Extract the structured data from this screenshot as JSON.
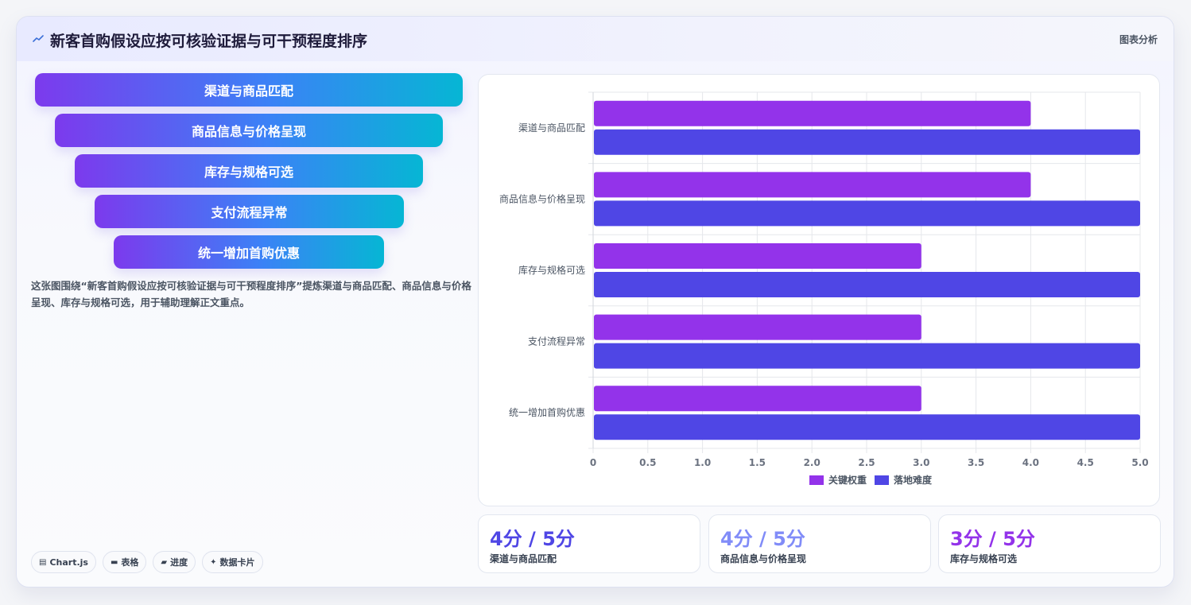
{
  "header": {
    "title": "新客首购假设应按可核验证据与可干预程度排序",
    "tag": "图表分析"
  },
  "funnel": {
    "items": [
      "渠道与商品匹配",
      "商品信息与价格呈现",
      "库存与规格可选",
      "支付流程异常",
      "统一增加首购优惠"
    ]
  },
  "description": "这张图围绕“新客首购假设应按可核验证据与可干预程度排序”提炼渠道与商品匹配、商品信息与价格呈现、库存与规格可选，用于辅助理解正文重点。",
  "chips": [
    {
      "icon": "chart-icon",
      "glyph": "▤",
      "label": "Chart.js"
    },
    {
      "icon": "table-icon",
      "glyph": "▬",
      "label": "表格"
    },
    {
      "icon": "progress-icon",
      "glyph": "▰",
      "label": "进度"
    },
    {
      "icon": "sparkle-icon",
      "glyph": "✦",
      "label": "数据卡片"
    }
  ],
  "chart_data": {
    "type": "bar",
    "orientation": "horizontal",
    "categories": [
      "渠道与商品匹配",
      "商品信息与价格呈现",
      "库存与规格可选",
      "支付流程异常",
      "统一增加首购优惠"
    ],
    "series": [
      {
        "name": "关键权重",
        "color": "#9333ea",
        "values": [
          4,
          4,
          3,
          3,
          3
        ]
      },
      {
        "name": "落地难度",
        "color": "#4f46e5",
        "values": [
          5,
          5,
          5,
          5,
          5
        ]
      }
    ],
    "xlim": [
      0,
      5
    ],
    "xticks": [
      "0",
      "0.5",
      "1.0",
      "1.5",
      "2.0",
      "2.5",
      "3.0",
      "3.5",
      "4.0",
      "4.5",
      "5.0"
    ],
    "grid": true,
    "legend": "bottom"
  },
  "stats": [
    {
      "value": "4分 / 5分",
      "label": "渠道与商品匹配",
      "color": "#4f46e5"
    },
    {
      "value": "4分 / 5分",
      "label": "商品信息与价格呈现",
      "color": "#818cf8"
    },
    {
      "value": "3分 / 5分",
      "label": "库存与规格可选",
      "color": "#9333ea"
    }
  ]
}
